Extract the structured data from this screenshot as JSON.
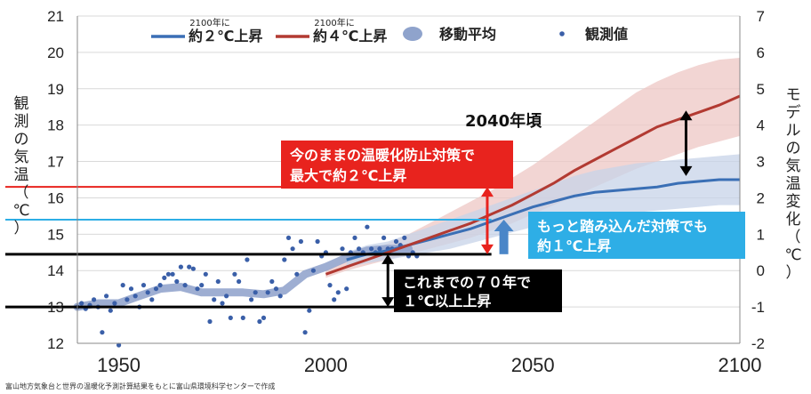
{
  "chart_data": {
    "type": "line",
    "xlim": [
      1940,
      2100
    ],
    "ylim": [
      12,
      21
    ],
    "y2lim": [
      -2,
      7
    ],
    "x_ticks": [
      1950,
      2000,
      2050,
      2100
    ],
    "y_ticks": [
      12,
      13,
      14,
      15,
      16,
      17,
      18,
      19,
      20,
      21
    ],
    "y2_ticks": [
      -2,
      -1,
      0,
      1,
      2,
      3,
      4,
      5,
      6,
      7
    ],
    "ylabel_chars": [
      "観",
      "測",
      "の",
      "気",
      "温",
      "（",
      "℃",
      "）"
    ],
    "y2label_chars": [
      "モ",
      "デ",
      "ル",
      "の",
      "気",
      "温",
      "変",
      "化",
      "（",
      "℃",
      "）"
    ],
    "grid": true,
    "legend": {
      "position": "top",
      "entries": [
        {
          "name": "約２℃上昇",
          "sup": "2100年に",
          "color": "#3a6fb5",
          "kind": "line"
        },
        {
          "name": "約４℃上昇",
          "sup": "2100年に",
          "color": "#b23a32",
          "kind": "line"
        },
        {
          "name": "移動平均",
          "color": "#8fa3cc",
          "kind": "blob"
        },
        {
          "name": "観測値",
          "color": "#3a5fa8",
          "kind": "dot"
        }
      ]
    },
    "observed": {
      "x": [
        1940,
        1941,
        1942,
        1943,
        1944,
        1945,
        1946,
        1947,
        1948,
        1949,
        1950,
        1951,
        1952,
        1953,
        1954,
        1955,
        1956,
        1957,
        1958,
        1959,
        1960,
        1961,
        1962,
        1963,
        1964,
        1965,
        1966,
        1967,
        1968,
        1969,
        1970,
        1971,
        1972,
        1973,
        1974,
        1975,
        1976,
        1977,
        1978,
        1979,
        1980,
        1981,
        1982,
        1983,
        1984,
        1985,
        1986,
        1987,
        1988,
        1989,
        1990,
        1991,
        1992,
        1993,
        1994,
        1995,
        1996,
        1997,
        1998,
        1999,
        2000,
        2001,
        2002,
        2003,
        2004,
        2005,
        2006,
        2007,
        2008,
        2009,
        2010,
        2011,
        2012,
        2013,
        2014,
        2015,
        2016,
        2017,
        2018,
        2019,
        2020,
        2021,
        2022
      ],
      "y": [
        13.0,
        13.1,
        12.95,
        13.05,
        13.2,
        13.0,
        12.3,
        13.3,
        12.9,
        13.1,
        11.95,
        13.6,
        13.2,
        13.5,
        13.3,
        13.0,
        13.6,
        13.4,
        13.2,
        13.5,
        13.6,
        13.8,
        13.9,
        13.9,
        13.7,
        14.1,
        13.6,
        14.1,
        14.05,
        13.5,
        13.6,
        13.9,
        12.6,
        13.2,
        13.7,
        13.1,
        13.3,
        12.7,
        13.9,
        13.7,
        12.7,
        14.3,
        13.2,
        13.4,
        12.6,
        12.7,
        13.4,
        13.7,
        13.5,
        13.3,
        14.3,
        14.9,
        14.6,
        13.9,
        14.8,
        12.3,
        12.9,
        14.0,
        14.8,
        14.4,
        14.5,
        13.6,
        13.2,
        13.4,
        14.6,
        13.5,
        14.5,
        14.9,
        14.6,
        14.5,
        15.2,
        14.6,
        14.5,
        14.6,
        14.9,
        14.6,
        14.6,
        14.8,
        14.7,
        14.9,
        14.4,
        14.5,
        14.4
      ]
    },
    "moving_average": {
      "x": [
        1940,
        1945,
        1950,
        1955,
        1960,
        1965,
        1970,
        1975,
        1980,
        1985,
        1990,
        1995,
        2000,
        2005,
        2010,
        2015,
        2020
      ],
      "y": [
        13.0,
        13.1,
        13.1,
        13.3,
        13.5,
        13.55,
        13.4,
        13.4,
        13.4,
        13.35,
        13.45,
        13.9,
        14.1,
        14.35,
        14.55,
        14.6,
        14.6
      ]
    },
    "series": [
      {
        "name": "約２℃上昇",
        "color": "#3a6fb5",
        "x": [
          2005,
          2010,
          2015,
          2020,
          2025,
          2030,
          2035,
          2040,
          2045,
          2050,
          2055,
          2060,
          2065,
          2070,
          2075,
          2080,
          2085,
          2090,
          2095,
          2100
        ],
        "y": [
          14.3,
          14.45,
          14.55,
          14.7,
          14.85,
          15.0,
          15.15,
          15.35,
          15.55,
          15.75,
          15.9,
          16.05,
          16.15,
          16.2,
          16.25,
          16.3,
          16.4,
          16.45,
          16.5,
          16.5
        ],
        "band_low": [
          14.1,
          14.2,
          14.3,
          14.4,
          14.5,
          14.6,
          14.75,
          14.9,
          15.05,
          15.2,
          15.35,
          15.45,
          15.5,
          15.55,
          15.6,
          15.65,
          15.7,
          15.75,
          15.8,
          15.8
        ],
        "band_high": [
          14.5,
          14.7,
          14.8,
          15.0,
          15.2,
          15.4,
          15.6,
          15.8,
          16.0,
          16.2,
          16.4,
          16.6,
          16.75,
          16.85,
          16.95,
          17.0,
          17.05,
          17.1,
          17.15,
          17.2
        ]
      },
      {
        "name": "約４℃上昇",
        "color": "#b23a32",
        "x": [
          2000,
          2005,
          2010,
          2015,
          2020,
          2025,
          2030,
          2035,
          2040,
          2045,
          2050,
          2055,
          2060,
          2065,
          2070,
          2075,
          2080,
          2085,
          2090,
          2095,
          2100
        ],
        "y": [
          13.9,
          14.1,
          14.3,
          14.5,
          14.7,
          14.9,
          15.1,
          15.3,
          15.55,
          15.8,
          16.1,
          16.4,
          16.75,
          17.05,
          17.35,
          17.65,
          17.95,
          18.15,
          18.35,
          18.55,
          18.8
        ],
        "band_low": [
          13.8,
          14.0,
          14.15,
          14.3,
          14.45,
          14.6,
          14.75,
          14.9,
          15.1,
          15.3,
          15.55,
          15.8,
          16.05,
          16.3,
          16.55,
          16.8,
          17.0,
          17.2,
          17.4,
          17.55,
          17.7
        ],
        "band_high": [
          14.0,
          14.25,
          14.5,
          14.75,
          15.0,
          15.3,
          15.6,
          15.9,
          16.2,
          16.55,
          16.9,
          17.3,
          17.7,
          18.1,
          18.5,
          18.9,
          19.2,
          19.45,
          19.65,
          19.8,
          19.85
        ]
      }
    ],
    "reference_lines": [
      {
        "y": 16.3,
        "color": "#e8231e",
        "x_end": 2040
      },
      {
        "y": 15.4,
        "color": "#2eaee6",
        "x_end": 2040
      },
      {
        "y": 14.45,
        "color": "#000000",
        "x_end": 2040
      },
      {
        "y": 13.0,
        "color": "#000000",
        "x_end": 2040
      }
    ],
    "arrows": [
      {
        "x": 2015,
        "from": 13.0,
        "to": 14.45,
        "color": "#000000",
        "double": true
      },
      {
        "x": 2039,
        "from": 14.45,
        "to": 16.3,
        "color": "#e8231e",
        "double": true
      },
      {
        "x": 2043,
        "from": 14.45,
        "to": 15.4,
        "color": "#4a86c8",
        "double": false
      },
      {
        "x": 2087,
        "from": 16.6,
        "to": 18.4,
        "color": "#000000",
        "double": true
      }
    ],
    "annotations": {
      "red_box": [
        "今のままの温暖化防止対策で",
        "最大で約２℃上昇"
      ],
      "blue_box": [
        "もっと踏み込んだ対策でも",
        "約１℃上昇"
      ],
      "black_box": [
        "これまでの７０年で",
        "１℃以上上昇"
      ],
      "year_label": "2040年頃"
    },
    "footer": "富山地方気象台と世界の温暖化予測計算結果をもとに富山県環境科学センターで作成"
  }
}
